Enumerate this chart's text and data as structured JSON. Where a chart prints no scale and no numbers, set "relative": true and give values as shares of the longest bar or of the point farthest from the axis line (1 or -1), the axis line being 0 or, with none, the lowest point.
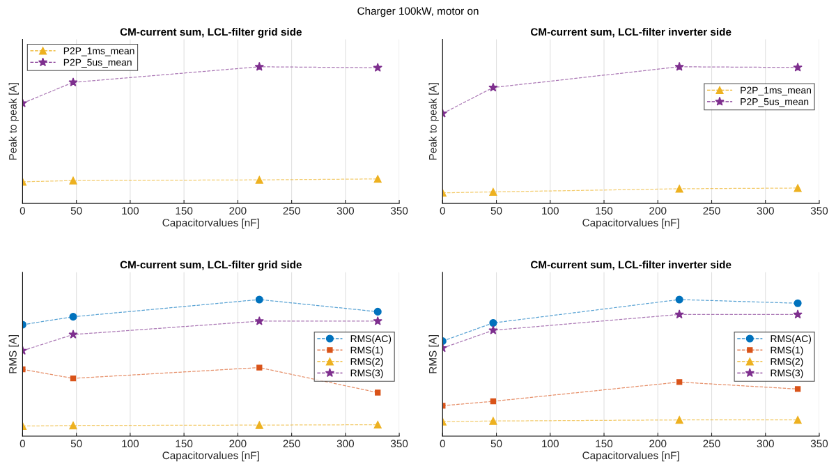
{
  "chart_data": [
    {
      "type": "line",
      "title": "CM-current sum, LCL-filter grid side",
      "xlabel": "Capacitorvalues [nF]",
      "ylabel": "Peak to peak [A]",
      "annotations": [
        "Charger 100kW, motor on"
      ],
      "x": [
        0,
        47,
        220,
        330
      ],
      "xlim": [
        0,
        350
      ],
      "xticks": [
        0,
        50,
        100,
        150,
        200,
        250,
        300,
        350
      ],
      "relative": true,
      "grid": "x",
      "legend": "top left",
      "line_style": "dashed",
      "tick_labels": "x",
      "series": [
        {
          "name": "P2P_1ms_mean",
          "color": "#edb120",
          "marker": "triangle",
          "values": [
            0.158,
            0.167,
            0.172,
            0.179
          ]
        },
        {
          "name": "P2P_5us_mean",
          "color": "#7e2f8e",
          "marker": "star",
          "values": [
            0.733,
            0.886,
            1,
            0.993
          ]
        }
      ]
    },
    {
      "type": "line",
      "title": "CM-current sum, LCL-filter inverter side",
      "xlabel": "Capacitorvalues [nF]",
      "ylabel": "Peak to peak [A]",
      "x": [
        0,
        47,
        220,
        330
      ],
      "xlim": [
        0,
        350
      ],
      "xticks": [
        0,
        50,
        100,
        150,
        200,
        250,
        300,
        350
      ],
      "relative": true,
      "grid": "x",
      "legend": "top right",
      "line_style": "dashed",
      "tick_labels": "x",
      "series": [
        {
          "name": "P2P_1ms_mean",
          "color": "#edb120",
          "marker": "triangle",
          "values": [
            0.077,
            0.084,
            0.107,
            0.112
          ]
        },
        {
          "name": "P2P_5us_mean",
          "color": "#7e2f8e",
          "marker": "star",
          "values": [
            0.658,
            0.848,
            1,
            0.995
          ]
        }
      ]
    },
    {
      "type": "line",
      "title": "CM-current sum, LCL-filter grid side",
      "xlabel": "Capacitorvalues [nF]",
      "ylabel": "RMS [A]",
      "x": [
        0,
        47,
        220,
        330
      ],
      "xlim": [
        0,
        350
      ],
      "xticks": [
        0,
        50,
        100,
        150,
        200,
        250,
        300,
        350
      ],
      "relative": true,
      "grid": "x",
      "legend": "right",
      "line_style": "dashed",
      "tick_labels": "x",
      "series": [
        {
          "name": "RMS(AC)",
          "color": "#0072bd",
          "marker": "circle",
          "values": [
            0.816,
            0.874,
            1,
            0.911
          ]
        },
        {
          "name": "RMS(1)",
          "color": "#d95319",
          "marker": "square",
          "values": [
            0.489,
            0.423,
            0.502,
            0.319
          ]
        },
        {
          "name": "RMS(2)",
          "color": "#edb120",
          "marker": "triangle",
          "values": [
            0.074,
            0.078,
            0.081,
            0.084
          ]
        },
        {
          "name": "RMS(3)",
          "color": "#7e2f8e",
          "marker": "star",
          "values": [
            0.626,
            0.744,
            0.842,
            0.842
          ]
        }
      ]
    },
    {
      "type": "line",
      "title": "CM-current sum, LCL-filter inverter side",
      "xlabel": "Capacitorvalues [nF]",
      "ylabel": "RMS [A]",
      "x": [
        0,
        47,
        220,
        330
      ],
      "xlim": [
        0,
        350
      ],
      "xticks": [
        0,
        50,
        100,
        150,
        200,
        250,
        300,
        350
      ],
      "relative": true,
      "grid": "x",
      "legend": "right",
      "line_style": "dashed",
      "tick_labels": "x",
      "series": [
        {
          "name": "RMS(AC)",
          "color": "#0072bd",
          "marker": "circle",
          "values": [
            0.696,
            0.829,
            1,
            0.973
          ]
        },
        {
          "name": "RMS(1)",
          "color": "#d95319",
          "marker": "square",
          "values": [
            0.223,
            0.255,
            0.396,
            0.345
          ]
        },
        {
          "name": "RMS(2)",
          "color": "#edb120",
          "marker": "triangle",
          "values": [
            0.106,
            0.111,
            0.119,
            0.119
          ]
        },
        {
          "name": "RMS(3)",
          "color": "#7e2f8e",
          "marker": "star",
          "values": [
            0.645,
            0.775,
            0.891,
            0.891
          ]
        }
      ]
    }
  ]
}
